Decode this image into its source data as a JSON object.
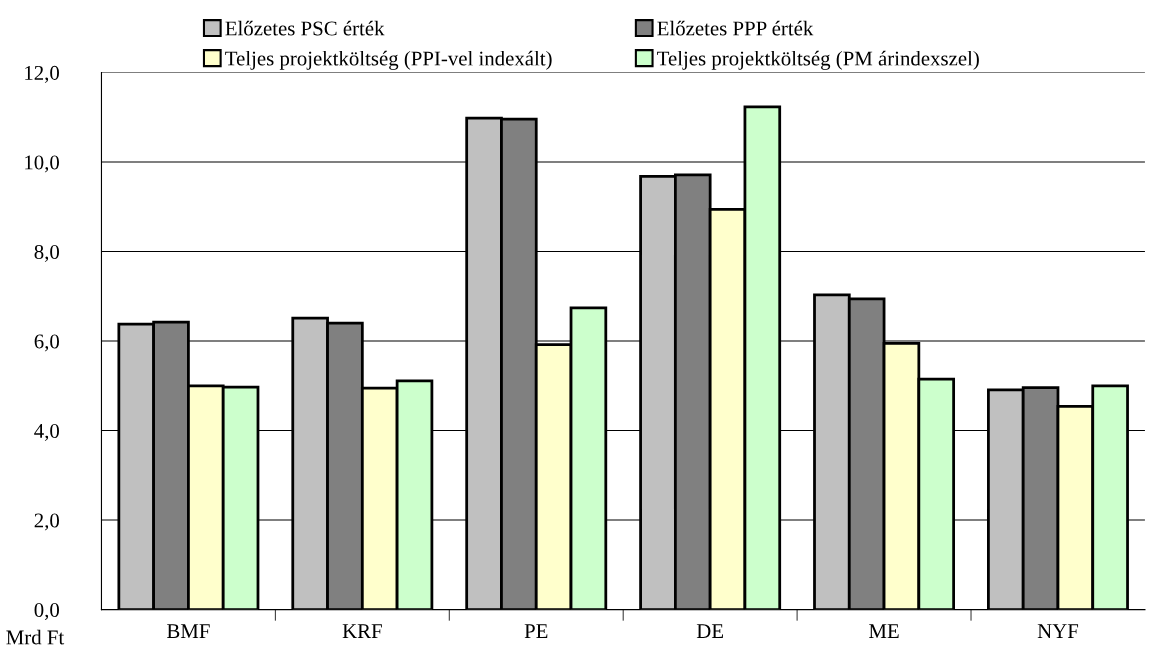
{
  "chart_data": {
    "type": "bar",
    "categories": [
      "BMF",
      "KRF",
      "PE",
      "DE",
      "ME",
      "NYF"
    ],
    "series": [
      {
        "name": "Előzetes PSC érték",
        "color": "#c0c0c0",
        "values": [
          6.38,
          6.51,
          10.98,
          9.68,
          7.03,
          4.91
        ]
      },
      {
        "name": "Előzetes PPP érték",
        "color": "#808080",
        "values": [
          6.42,
          6.4,
          10.96,
          9.71,
          6.94,
          4.96
        ]
      },
      {
        "name": "Teljes projektköltség (PPI-vel indexált)",
        "color": "#ffffcc",
        "values": [
          5.0,
          4.95,
          5.92,
          8.94,
          5.95,
          4.54
        ]
      },
      {
        "name": "Teljes projektköltség (PM árindexszel)",
        "color": "#ccffcc",
        "values": [
          4.97,
          5.11,
          6.74,
          11.23,
          5.15,
          5.0
        ]
      }
    ],
    "ylim": [
      0,
      12
    ],
    "yticks": [
      {
        "value": 0,
        "label": "0,0"
      },
      {
        "value": 2,
        "label": "2,0"
      },
      {
        "value": 4,
        "label": "4,0"
      },
      {
        "value": 6,
        "label": "6,0"
      },
      {
        "value": 8,
        "label": "8,0"
      },
      {
        "value": 10,
        "label": "10,0"
      },
      {
        "value": 12,
        "label": "12,0"
      }
    ],
    "grid": "y",
    "legend": "top",
    "annotations": [
      "Mrd Ft"
    ]
  }
}
